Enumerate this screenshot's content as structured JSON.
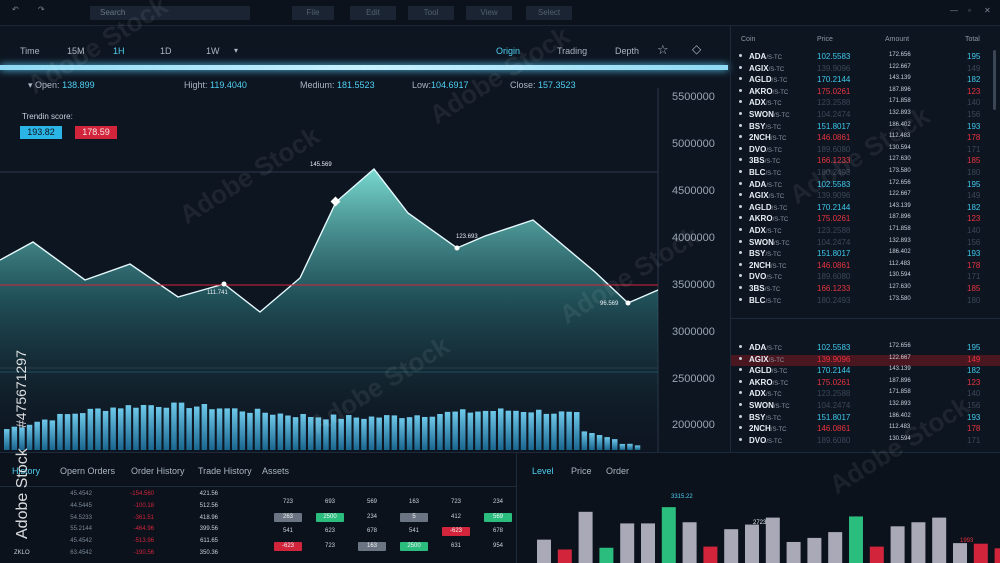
{
  "menu": {
    "search_placeholder": "Search",
    "file": "File",
    "edit": "Edit",
    "tool": "Tool",
    "view": "View",
    "select": "Select"
  },
  "toolbar": {
    "time_label": "Time",
    "tf_15m": "15M",
    "tf_1h": "1H",
    "tf_1d": "1D",
    "tf_1w": "1W",
    "origin": "Origin",
    "trading": "Trading",
    "depth": "Depth"
  },
  "stats": {
    "open_label": "Open:",
    "open": "138.899",
    "high_label": "Hight:",
    "high": "119.4040",
    "medium_label": "Medium:",
    "medium": "181.5523",
    "low_label": "Low:",
    "low": "104.6917",
    "close_label": "Close:",
    "close": "157.3523"
  },
  "trend": {
    "label": "Trendin score:",
    "up": "193.82",
    "down": "178.59"
  },
  "chart_data": {
    "type": "area",
    "y_ticks": [
      "5500000",
      "5000000",
      "4500000",
      "4000000",
      "3500000",
      "3000000",
      "2500000",
      "2000000"
    ],
    "annotations": [
      "145.569",
      "111.741",
      "123.693",
      "96.569"
    ],
    "grid": true
  },
  "book": {
    "headers": {
      "coin": "Coin",
      "price": "Price",
      "amount": "Amount",
      "total": "Total"
    },
    "suffix": "/S-TC",
    "rows_top": [
      {
        "coin": "ADA",
        "price": "102.5583",
        "amount": "172.656",
        "total": "195",
        "c": "up"
      },
      {
        "coin": "AGIX",
        "price": "139.9096",
        "amount": "122.667",
        "total": "149",
        "c": "mute"
      },
      {
        "coin": "AGLD",
        "price": "170.2144",
        "amount": "143.139",
        "total": "182",
        "c": "up"
      },
      {
        "coin": "AKRO",
        "price": "175.0261",
        "amount": "187.896",
        "total": "123",
        "c": "dn"
      },
      {
        "coin": "ADX",
        "price": "123.2588",
        "amount": "171.858",
        "total": "140",
        "c": "mute"
      },
      {
        "coin": "SWON",
        "price": "104.2474",
        "amount": "132.893",
        "total": "156",
        "c": "mute"
      },
      {
        "coin": "BSY",
        "price": "151.8017",
        "amount": "186.402",
        "total": "193",
        "c": "up"
      },
      {
        "coin": "2NCH",
        "price": "146.0861",
        "amount": "112.483",
        "total": "178",
        "c": "dn"
      },
      {
        "coin": "DVO",
        "price": "189.6080",
        "amount": "130.594",
        "total": "171",
        "c": "mute"
      },
      {
        "coin": "3BS",
        "price": "166.1233",
        "amount": "127.630",
        "total": "185",
        "c": "dn"
      },
      {
        "coin": "BLC",
        "price": "180.2493",
        "amount": "173.580",
        "total": "180",
        "c": "mute"
      },
      {
        "coin": "ADA",
        "price": "102.5583",
        "amount": "172.656",
        "total": "195",
        "c": "up"
      },
      {
        "coin": "AGIX",
        "price": "139.9096",
        "amount": "122.667",
        "total": "149",
        "c": "mute"
      },
      {
        "coin": "AGLD",
        "price": "170.2144",
        "amount": "143.139",
        "total": "182",
        "c": "up"
      },
      {
        "coin": "AKRO",
        "price": "175.0261",
        "amount": "187.896",
        "total": "123",
        "c": "dn"
      },
      {
        "coin": "ADX",
        "price": "123.2588",
        "amount": "171.858",
        "total": "140",
        "c": "mute"
      },
      {
        "coin": "SWON",
        "price": "104.2474",
        "amount": "132.893",
        "total": "156",
        "c": "mute"
      },
      {
        "coin": "BSY",
        "price": "151.8017",
        "amount": "186.402",
        "total": "193",
        "c": "up"
      },
      {
        "coin": "2NCH",
        "price": "146.0861",
        "amount": "112.483",
        "total": "178",
        "c": "dn"
      },
      {
        "coin": "DVO",
        "price": "189.6080",
        "amount": "130.594",
        "total": "171",
        "c": "mute"
      },
      {
        "coin": "3BS",
        "price": "166.1233",
        "amount": "127.630",
        "total": "185",
        "c": "dn"
      },
      {
        "coin": "BLC",
        "price": "180.2493",
        "amount": "173.580",
        "total": "180",
        "c": "mute"
      }
    ],
    "rows_bottom": [
      {
        "coin": "ADA",
        "price": "102.5583",
        "amount": "172.656",
        "total": "195",
        "c": "up"
      },
      {
        "coin": "AGIX",
        "price": "139.9096",
        "amount": "122.667",
        "total": "149",
        "c": "dn",
        "hl": true
      },
      {
        "coin": "AGLD",
        "price": "170.2144",
        "amount": "143.139",
        "total": "182",
        "c": "up"
      },
      {
        "coin": "AKRO",
        "price": "175.0261",
        "amount": "187.896",
        "total": "123",
        "c": "dn"
      },
      {
        "coin": "ADX",
        "price": "123.2588",
        "amount": "171.858",
        "total": "140",
        "c": "mute"
      },
      {
        "coin": "SWON",
        "price": "104.2474",
        "amount": "132.893",
        "total": "156",
        "c": "mute"
      },
      {
        "coin": "BSY",
        "price": "151.8017",
        "amount": "186.402",
        "total": "193",
        "c": "up"
      },
      {
        "coin": "2NCH",
        "price": "146.0861",
        "amount": "112.483",
        "total": "178",
        "c": "dn"
      },
      {
        "coin": "DVO",
        "price": "189.6080",
        "amount": "130.594",
        "total": "171",
        "c": "mute"
      }
    ]
  },
  "bottom_tabs": {
    "history": "History",
    "open_orders": "Opern Orders",
    "order_history": "Order History",
    "trade_history": "Trade History",
    "assets": "Assets",
    "level": "Level",
    "price": "Price",
    "order": "Order"
  },
  "history_rows": [
    {
      "a": "45.4542",
      "b": "-154.560",
      "c": "421.56"
    },
    {
      "a": "44.5445",
      "b": "-100.18",
      "c": "512.56"
    },
    {
      "a": "54.5233",
      "b": "-361.51",
      "c": "418.96"
    },
    {
      "a": "55.2144",
      "b": "-464.96",
      "c": "399.56"
    },
    {
      "a": "45.4542",
      "b": "-513.96",
      "c": "611.65"
    },
    {
      "a": "63.4542",
      "b": "-190.56",
      "c": "350.36"
    }
  ],
  "zklo": "ZKLO",
  "grid_vals": {
    "r1": [
      "723",
      "693",
      "569",
      "163",
      "723",
      "234"
    ],
    "r2": [
      "263",
      "2500",
      "234",
      "5",
      "412",
      "569"
    ],
    "r3": [
      "541",
      "623",
      "678",
      "541",
      "-623",
      "678"
    ],
    "r4": [
      "-623",
      "723",
      "163",
      "2500",
      "631",
      "954"
    ]
  },
  "bar_labels": {
    "peak": "3315.22",
    "mid": "2723",
    "right": "1993"
  },
  "bar_values": [
    0.42,
    0.25,
    0.9,
    0.28,
    0.7,
    0.7,
    0.98,
    0.72,
    0.3,
    0.6,
    0.68,
    0.8,
    0.38,
    0.45,
    0.55,
    0.82,
    0.3,
    0.65,
    0.72,
    0.8,
    0.36,
    0.35,
    0.27
  ],
  "bar_colors": [
    "#a9a9b8",
    "#d2243a",
    "#a9a9b8",
    "#2bbd7e",
    "#a9a9b8",
    "#a9a9b8",
    "#2bbd7e",
    "#a9a9b8",
    "#d2243a",
    "#a9a9b8",
    "#a9a9b8",
    "#a9a9b8",
    "#a9a9b8",
    "#a9a9b8",
    "#a9a9b8",
    "#2bbd7e",
    "#d2243a",
    "#a9a9b8",
    "#a9a9b8",
    "#a9a9b8",
    "#a9a9b8",
    "#d2243a",
    "#d2243a"
  ],
  "watermark": {
    "brand": "Adobe Stock",
    "id": "#475671297"
  },
  "colors": {
    "accent": "#4fd0f2",
    "up": "#3fc9ec",
    "down": "#e8343f"
  }
}
